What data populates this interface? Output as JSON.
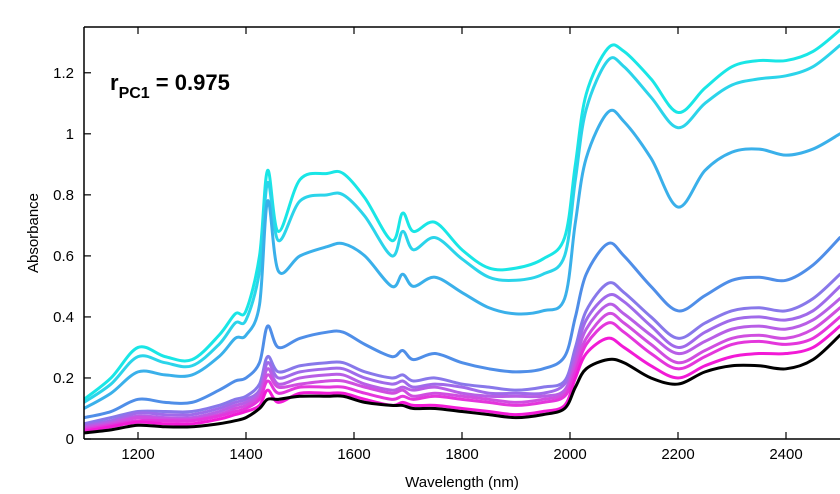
{
  "chart_data": {
    "type": "line",
    "title": "",
    "xlabel": "Wavelength (nm)",
    "ylabel": "Absorbance",
    "xlim": [
      1100,
      2500
    ],
    "ylim": [
      0,
      1.35
    ],
    "xticks": [
      1200,
      1400,
      1600,
      1800,
      2000,
      2200,
      2400
    ],
    "yticks": [
      0,
      0.2,
      0.4,
      0.6,
      0.8,
      1,
      1.2
    ],
    "xtick_labels": [
      "1200",
      "1400",
      "1600",
      "1800",
      "2000",
      "2200",
      "2400"
    ],
    "ytick_labels": [
      "0",
      "0.2",
      "0.4",
      "0.6",
      "0.8",
      "1",
      "1.2"
    ],
    "grid": false,
    "annotation": {
      "base": "r",
      "subscript": "PC1",
      "rest": " = 0.975"
    },
    "x": [
      1100,
      1150,
      1200,
      1250,
      1300,
      1350,
      1380,
      1400,
      1425,
      1440,
      1460,
      1500,
      1550,
      1580,
      1620,
      1670,
      1690,
      1710,
      1750,
      1800,
      1850,
      1900,
      1950,
      1990,
      2010,
      2030,
      2070,
      2100,
      2150,
      2200,
      2250,
      2300,
      2350,
      2400,
      2450,
      2500
    ],
    "series": [
      {
        "color": "#19e6e6",
        "values": [
          0.13,
          0.2,
          0.3,
          0.27,
          0.26,
          0.34,
          0.41,
          0.42,
          0.6,
          0.88,
          0.68,
          0.85,
          0.87,
          0.87,
          0.79,
          0.65,
          0.74,
          0.68,
          0.71,
          0.62,
          0.56,
          0.56,
          0.59,
          0.66,
          0.9,
          1.13,
          1.28,
          1.27,
          1.18,
          1.07,
          1.15,
          1.22,
          1.24,
          1.24,
          1.27,
          1.34
        ]
      },
      {
        "color": "#2bd4ea",
        "values": [
          0.12,
          0.18,
          0.27,
          0.25,
          0.24,
          0.31,
          0.38,
          0.39,
          0.55,
          0.84,
          0.65,
          0.78,
          0.8,
          0.8,
          0.73,
          0.6,
          0.68,
          0.62,
          0.66,
          0.59,
          0.53,
          0.52,
          0.54,
          0.6,
          0.85,
          1.08,
          1.24,
          1.22,
          1.12,
          1.02,
          1.1,
          1.16,
          1.18,
          1.19,
          1.22,
          1.29
        ]
      },
      {
        "color": "#3ab0ea",
        "values": [
          0.1,
          0.15,
          0.22,
          0.21,
          0.21,
          0.27,
          0.33,
          0.34,
          0.44,
          0.78,
          0.55,
          0.6,
          0.63,
          0.64,
          0.6,
          0.5,
          0.54,
          0.5,
          0.53,
          0.48,
          0.43,
          0.41,
          0.42,
          0.46,
          0.71,
          0.92,
          1.07,
          1.04,
          0.92,
          0.76,
          0.88,
          0.94,
          0.95,
          0.93,
          0.95,
          1.0
        ]
      },
      {
        "color": "#4f8ee8",
        "values": [
          0.07,
          0.09,
          0.13,
          0.12,
          0.12,
          0.16,
          0.19,
          0.2,
          0.25,
          0.37,
          0.3,
          0.33,
          0.35,
          0.35,
          0.31,
          0.27,
          0.29,
          0.26,
          0.28,
          0.25,
          0.23,
          0.22,
          0.23,
          0.27,
          0.4,
          0.54,
          0.64,
          0.6,
          0.5,
          0.42,
          0.47,
          0.52,
          0.53,
          0.52,
          0.57,
          0.66
        ]
      },
      {
        "color": "#8878ea",
        "values": [
          0.05,
          0.07,
          0.09,
          0.09,
          0.09,
          0.11,
          0.13,
          0.14,
          0.18,
          0.27,
          0.22,
          0.24,
          0.25,
          0.25,
          0.22,
          0.2,
          0.21,
          0.19,
          0.2,
          0.18,
          0.17,
          0.16,
          0.17,
          0.19,
          0.3,
          0.42,
          0.51,
          0.48,
          0.4,
          0.33,
          0.38,
          0.42,
          0.43,
          0.42,
          0.46,
          0.54
        ]
      },
      {
        "color": "#a06aea",
        "values": [
          0.045,
          0.06,
          0.085,
          0.08,
          0.08,
          0.1,
          0.12,
          0.13,
          0.16,
          0.25,
          0.2,
          0.22,
          0.23,
          0.23,
          0.2,
          0.18,
          0.19,
          0.17,
          0.18,
          0.17,
          0.15,
          0.15,
          0.15,
          0.18,
          0.28,
          0.39,
          0.47,
          0.45,
          0.37,
          0.3,
          0.35,
          0.39,
          0.4,
          0.39,
          0.42,
          0.5
        ]
      },
      {
        "color": "#b85ee6",
        "values": [
          0.04,
          0.055,
          0.075,
          0.07,
          0.07,
          0.09,
          0.11,
          0.12,
          0.15,
          0.23,
          0.18,
          0.2,
          0.21,
          0.21,
          0.18,
          0.16,
          0.17,
          0.16,
          0.17,
          0.15,
          0.14,
          0.14,
          0.14,
          0.16,
          0.26,
          0.36,
          0.44,
          0.41,
          0.34,
          0.28,
          0.32,
          0.36,
          0.37,
          0.36,
          0.39,
          0.46
        ]
      },
      {
        "color": "#d04ee0",
        "values": [
          0.035,
          0.05,
          0.07,
          0.065,
          0.065,
          0.08,
          0.1,
          0.11,
          0.14,
          0.21,
          0.17,
          0.18,
          0.19,
          0.19,
          0.17,
          0.15,
          0.16,
          0.14,
          0.15,
          0.14,
          0.13,
          0.12,
          0.13,
          0.15,
          0.24,
          0.33,
          0.41,
          0.38,
          0.31,
          0.25,
          0.29,
          0.33,
          0.34,
          0.33,
          0.36,
          0.43
        ]
      },
      {
        "color": "#e436dc",
        "values": [
          0.03,
          0.045,
          0.06,
          0.06,
          0.06,
          0.075,
          0.09,
          0.1,
          0.13,
          0.19,
          0.15,
          0.17,
          0.17,
          0.17,
          0.15,
          0.13,
          0.14,
          0.13,
          0.14,
          0.13,
          0.12,
          0.11,
          0.12,
          0.14,
          0.22,
          0.31,
          0.38,
          0.35,
          0.28,
          0.23,
          0.27,
          0.31,
          0.32,
          0.31,
          0.33,
          0.4
        ]
      },
      {
        "color": "#f21ad6",
        "values": [
          0.025,
          0.04,
          0.055,
          0.05,
          0.05,
          0.065,
          0.08,
          0.09,
          0.11,
          0.16,
          0.12,
          0.15,
          0.15,
          0.15,
          0.13,
          0.11,
          0.12,
          0.11,
          0.11,
          0.1,
          0.09,
          0.08,
          0.09,
          0.11,
          0.2,
          0.28,
          0.33,
          0.3,
          0.24,
          0.2,
          0.24,
          0.27,
          0.28,
          0.28,
          0.3,
          0.37
        ]
      },
      {
        "color": "#000000",
        "values": [
          0.02,
          0.03,
          0.045,
          0.04,
          0.04,
          0.05,
          0.06,
          0.07,
          0.1,
          0.13,
          0.13,
          0.14,
          0.14,
          0.14,
          0.12,
          0.11,
          0.11,
          0.1,
          0.1,
          0.09,
          0.08,
          0.07,
          0.08,
          0.1,
          0.17,
          0.23,
          0.26,
          0.25,
          0.2,
          0.18,
          0.22,
          0.24,
          0.24,
          0.23,
          0.26,
          0.34
        ]
      }
    ]
  }
}
